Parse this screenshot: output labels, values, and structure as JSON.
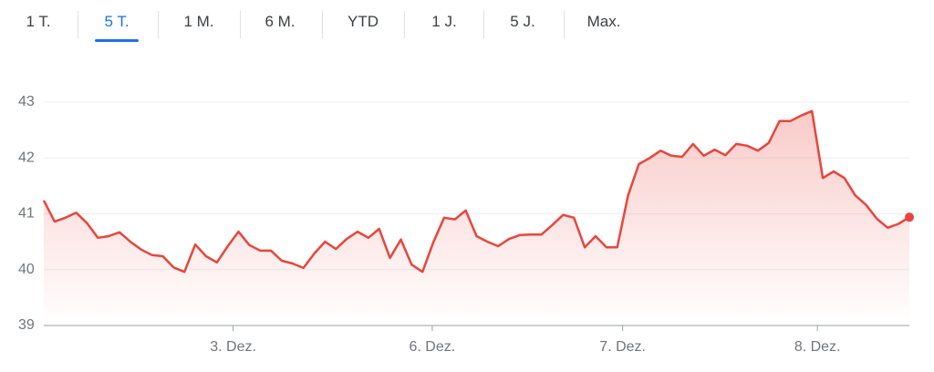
{
  "tabs": {
    "labels": [
      "1 T.",
      "5 T.",
      "1 M.",
      "6 M.",
      "YTD",
      "1 J.",
      "5 J.",
      "Max."
    ],
    "selected": 1
  },
  "chart_data": {
    "type": "line",
    "color": "#e8453c",
    "values": [
      41.24,
      40.86,
      40.93,
      41.02,
      40.83,
      40.57,
      40.6,
      40.67,
      40.5,
      40.36,
      40.26,
      40.24,
      40.04,
      39.96,
      40.45,
      40.24,
      40.13,
      40.42,
      40.68,
      40.44,
      40.34,
      40.34,
      40.16,
      40.11,
      40.03,
      40.29,
      40.5,
      40.37,
      40.55,
      40.68,
      40.57,
      40.73,
      40.21,
      40.54,
      40.09,
      39.96,
      40.49,
      40.93,
      40.9,
      41.06,
      40.6,
      40.5,
      40.42,
      40.55,
      40.62,
      40.63,
      40.63,
      40.8,
      40.98,
      40.93,
      40.4,
      40.6,
      40.4,
      40.4,
      41.33,
      41.89,
      42.0,
      42.13,
      42.04,
      42.02,
      42.25,
      42.04,
      42.15,
      42.05,
      42.25,
      42.22,
      42.13,
      42.27,
      42.66,
      42.66,
      42.76,
      42.84,
      41.64,
      41.76,
      41.64,
      41.33,
      41.16,
      40.91,
      40.75,
      40.82,
      40.94
    ],
    "xlim": [
      0,
      80
    ],
    "xticks": [
      {
        "value": 17.5,
        "label": "3. Dez."
      },
      {
        "value": 35.9,
        "label": "6. Dez."
      },
      {
        "value": 53.5,
        "label": "7. Dez."
      },
      {
        "value": 71.5,
        "label": "8. Dez."
      }
    ],
    "ylim": [
      39,
      43
    ],
    "yticks": [
      39,
      40,
      41,
      42,
      43
    ],
    "grid": true
  }
}
